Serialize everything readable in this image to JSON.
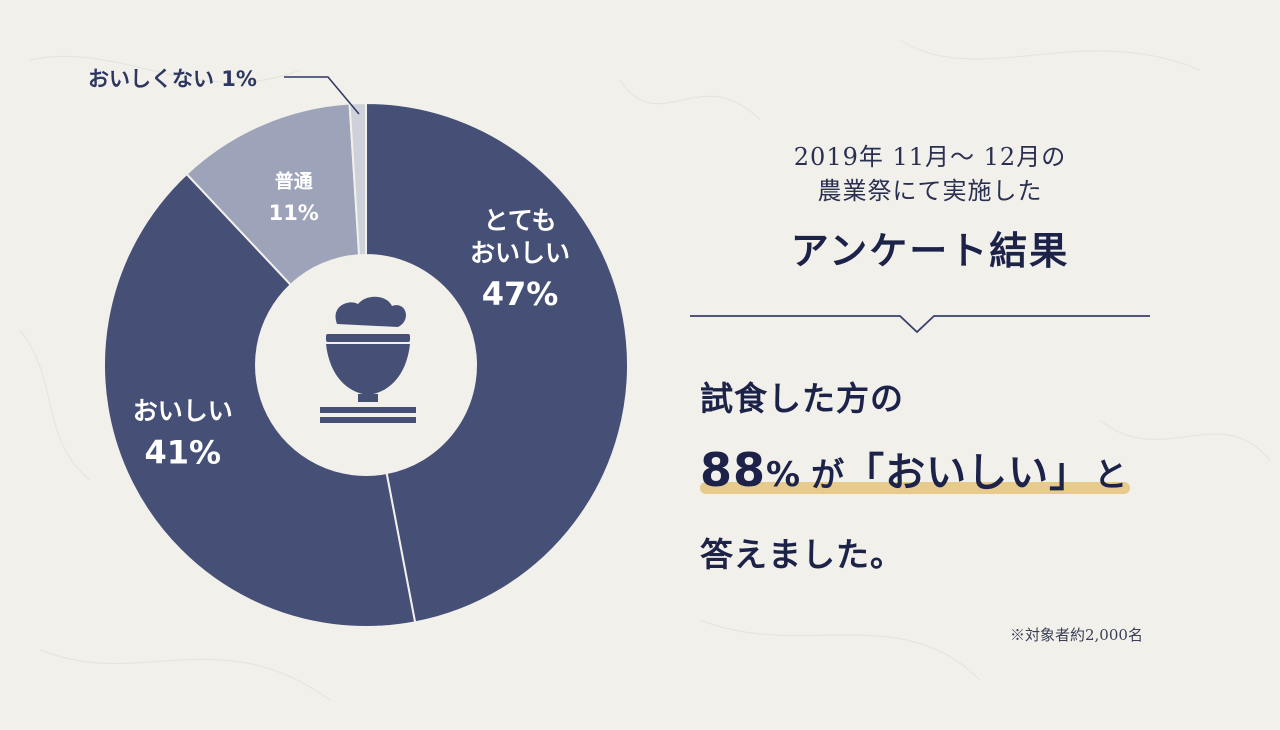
{
  "chart_data": {
    "type": "pie",
    "donut": true,
    "slices": [
      {
        "label_lines": [
          "とても",
          "おいしい"
        ],
        "percent_text": "47%",
        "value": 47,
        "color": "#465077"
      },
      {
        "label_lines": [
          "おいしい"
        ],
        "percent_text": "41%",
        "value": 41,
        "color": "#465077"
      },
      {
        "label_lines": [
          "普通"
        ],
        "percent_text": "11%",
        "value": 11,
        "color": "#9da3b8"
      },
      {
        "label_lines": [
          "おいしくない"
        ],
        "percent_text": "1%",
        "value": 1,
        "color": "#cfd1da"
      }
    ],
    "callout_label": "おいしくない 1%",
    "center_icon": "rice-bowl-icon",
    "slice_order": "clockwise-from-top"
  },
  "survey": {
    "meta_line1": "2019年 11月〜 12月の",
    "meta_line2": "農業祭にて実施した",
    "title": "アンケート結果"
  },
  "headline": {
    "line1": "試食した方の",
    "percent": "88",
    "percent_unit": "%",
    "middle": "が",
    "quote": "「おいしい」",
    "particle": "と",
    "line3": "答えました。"
  },
  "footnote": "※対象者約2,000名",
  "colors": {
    "navy": "#465077",
    "gray": "#9da3b8",
    "light": "#cfd1da",
    "highlight": "#e5c47b",
    "text": "#1d2348",
    "background": "#f1f0eb"
  }
}
